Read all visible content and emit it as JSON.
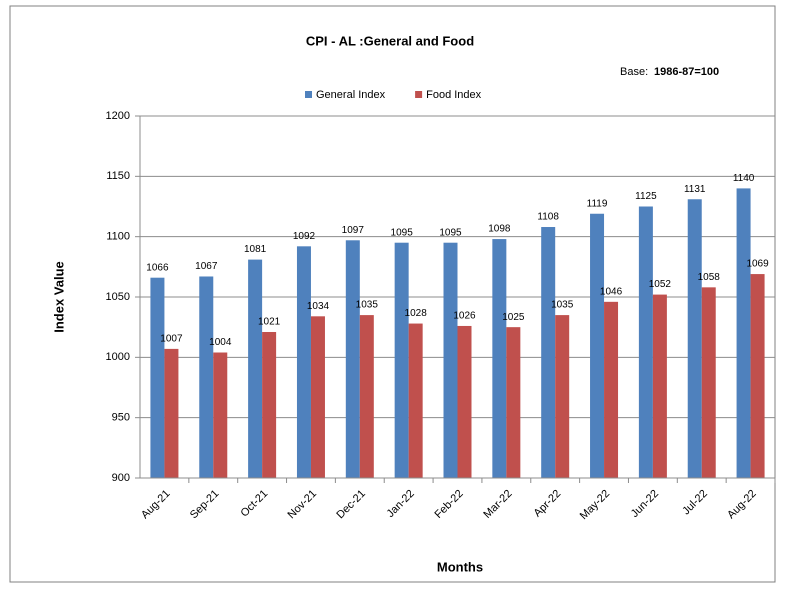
{
  "chart_data": {
    "type": "bar",
    "title": "CPI - AL :General and Food",
    "annotation": {
      "label": "Base:",
      "value": "1986-87=100"
    },
    "x_label": "Months",
    "y_label": "Index Value",
    "categories": [
      "Aug-21",
      "Sep-21",
      "Oct-21",
      "Nov-21",
      "Dec-21",
      "Jan-22",
      "Feb-22",
      "Mar-22",
      "Apr-22",
      "May-22",
      "Jun-22",
      "Jul-22",
      "Aug-22"
    ],
    "series": [
      {
        "name": "General Index",
        "color": "#4f81bd",
        "values": [
          1066,
          1067,
          1081,
          1092,
          1097,
          1095,
          1095,
          1098,
          1108,
          1119,
          1125,
          1131,
          1140
        ]
      },
      {
        "name": "Food Index",
        "color": "#c0504d",
        "values": [
          1007,
          1004,
          1021,
          1034,
          1035,
          1028,
          1026,
          1025,
          1035,
          1046,
          1052,
          1058,
          1069
        ]
      }
    ],
    "ylim": [
      900,
      1200
    ],
    "yticks": [
      900,
      950,
      1000,
      1050,
      1100,
      1150,
      1200
    ],
    "grid": true,
    "legend": "top"
  }
}
